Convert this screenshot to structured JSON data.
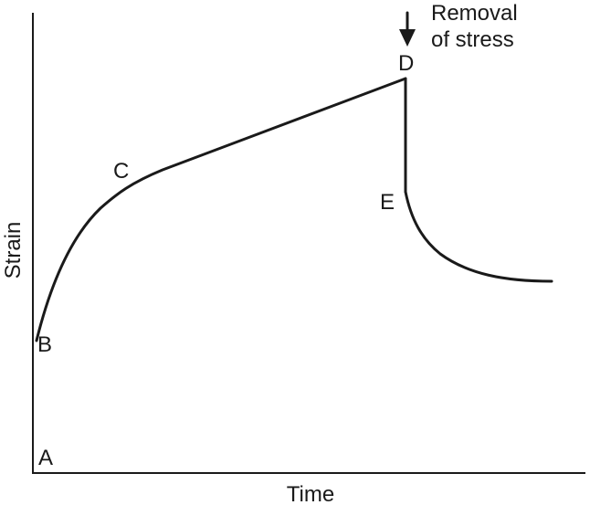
{
  "axes": {
    "x_label": "Time",
    "y_label": "Strain"
  },
  "points": {
    "a": "A",
    "b": "B",
    "c": "C",
    "d": "D",
    "e": "E"
  },
  "annotation": {
    "line1": "Removal",
    "line2": "of stress"
  },
  "colors": {
    "ink": "#1a1a1a",
    "background": "#ffffff"
  }
}
